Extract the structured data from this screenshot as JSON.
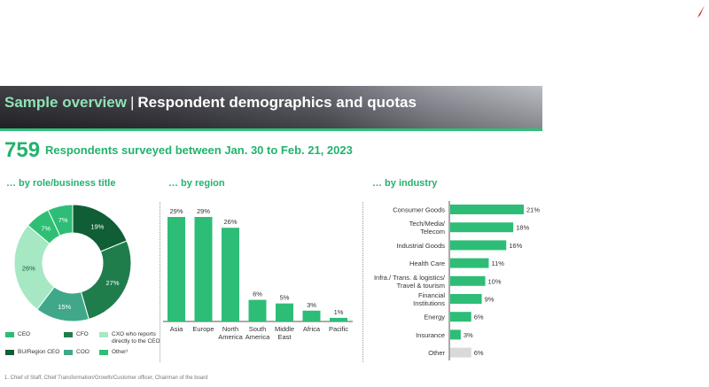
{
  "colors": {
    "accent": "#22b36c",
    "banner_accent": "#8fe3b5",
    "bar_green": "#2dbd76",
    "bar_grey": "#d9d9d9"
  },
  "banner": {
    "title_accent": "Sample overview",
    "separator": "|",
    "title_main": "Respondent demographics and quotas"
  },
  "headline": {
    "count": "759",
    "text": "Respondents surveyed between Jan. 30 to Feb. 21, 2023"
  },
  "sections": {
    "role": "… by role/business title",
    "region": "… by region",
    "industry": "… by industry"
  },
  "footnote": "1. Chief of Staff, Chief Transformation/Growth/Customer officer, Chairman of the board",
  "chart_data": [
    {
      "type": "pie",
      "variant": "donut",
      "slices": [
        {
          "label": "CEO",
          "value": 7,
          "color": "#2dbd76",
          "value_label": "7%"
        },
        {
          "label": "CFO",
          "value": 19,
          "color": "#0f5e36",
          "value_label": "19%"
        },
        {
          "label": "CXO who reports directly to the CEO",
          "value": 27,
          "color": "#1f7d4c",
          "value_label": "27%"
        },
        {
          "label": "BU/Region CEO",
          "value": 15,
          "color": "#40a889",
          "value_label": "15%"
        },
        {
          "label": "COO",
          "value": 26,
          "color": "#a6e8c4",
          "value_label": "26%"
        },
        {
          "label": "Other¹",
          "value": 7,
          "color": "#2fbf74",
          "value_label": "7%"
        }
      ],
      "legend": [
        {
          "label": "CEO",
          "color": "#2dbd76"
        },
        {
          "label": "CFO",
          "color": "#1f7d4c"
        },
        {
          "label": "CXO who reports directly to the CEO",
          "color": "#a6e8c4"
        },
        {
          "label": "BU/Region CEO",
          "color": "#0f5e36"
        },
        {
          "label": "COO",
          "color": "#40a889"
        },
        {
          "label": "Other¹",
          "color": "#2fbf74"
        }
      ],
      "legend_placement": "bottom"
    },
    {
      "type": "bar",
      "orientation": "vertical",
      "categories": [
        "Asia",
        "Europe",
        "North America",
        "South America",
        "Middle East",
        "Africa",
        "Pacific"
      ],
      "category_lines": [
        [
          "Asia"
        ],
        [
          "Europe"
        ],
        [
          "North",
          "America"
        ],
        [
          "South",
          "America"
        ],
        [
          "Middle",
          "East"
        ],
        [
          "Africa"
        ],
        [
          "Pacific"
        ]
      ],
      "values": [
        29,
        29,
        26,
        6,
        5,
        3,
        1
      ],
      "value_labels": [
        "29%",
        "29%",
        "26%",
        "6%",
        "5%",
        "3%",
        "1%"
      ],
      "ylim": [
        0,
        30
      ],
      "grid": false
    },
    {
      "type": "bar",
      "orientation": "horizontal",
      "categories": [
        "Consumer Goods",
        "Tech/Media/ Telecom",
        "Industrial Goods",
        "Health Care",
        "Infra./ Trans. & logistics/ Travel & tourism",
        "Financial Institutions",
        "Energy",
        "Insurance",
        "Other"
      ],
      "category_lines": [
        [
          "Consumer Goods"
        ],
        [
          "Tech/Media/",
          "Telecom"
        ],
        [
          "Industrial Goods"
        ],
        [
          "Health Care"
        ],
        [
          "Infra./ Trans. & logistics/",
          "Travel & tourism"
        ],
        [
          "Financial",
          "Institutions"
        ],
        [
          "Energy"
        ],
        [
          "Insurance"
        ],
        [
          "Other"
        ]
      ],
      "values": [
        21,
        18,
        16,
        11,
        10,
        9,
        6,
        3,
        6
      ],
      "value_labels": [
        "21%",
        "18%",
        "16%",
        "11%",
        "10%",
        "9%",
        "6%",
        "3%",
        "6%"
      ],
      "bar_colors": [
        "#2dbd76",
        "#2dbd76",
        "#2dbd76",
        "#2dbd76",
        "#2dbd76",
        "#2dbd76",
        "#2dbd76",
        "#2dbd76",
        "#d9d9d9"
      ],
      "xlim": [
        0,
        22
      ],
      "grid": false
    }
  ]
}
